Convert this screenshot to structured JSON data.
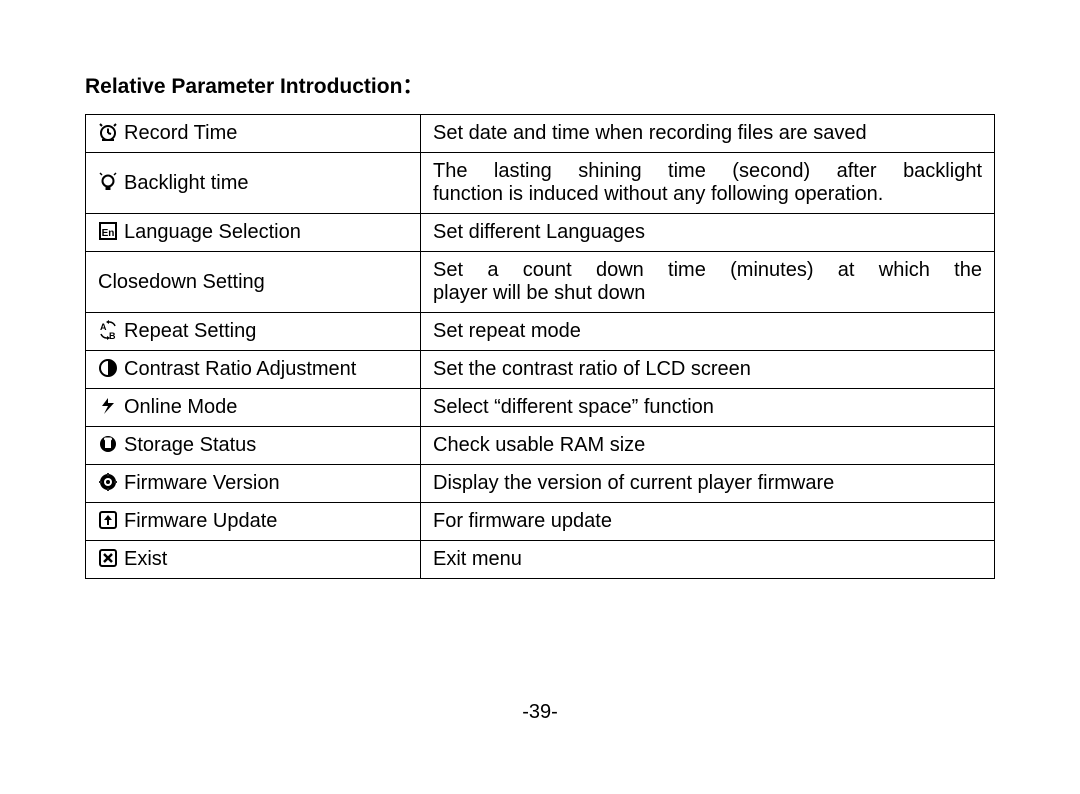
{
  "title": "Relative Parameter Introduction：",
  "page_number": "-39-",
  "table": {
    "rows": [
      {
        "icon": "clock",
        "name": "Record Time",
        "desc": "Set date and time when recording files are saved"
      },
      {
        "icon": "bulb",
        "name": "Backlight time",
        "desc_justified_part": "The lasting shining time (second) after backlight",
        "desc_last_line": "function is induced without any following operation."
      },
      {
        "icon": "lang",
        "name": "Language Selection",
        "desc": "Set different Languages"
      },
      {
        "icon": "",
        "name": "Closedown Setting",
        "desc_justified_part": "Set a count down time (minutes) at which the",
        "desc_last_line": "player will be shut down"
      },
      {
        "icon": "repeat",
        "name": "Repeat Setting",
        "desc": "Set repeat mode"
      },
      {
        "icon": "contrast",
        "name": "Contrast Ratio Adjustment",
        "desc": "Set the contrast ratio of LCD screen"
      },
      {
        "icon": "online",
        "name": "Online Mode",
        "desc": "Select “different space” function"
      },
      {
        "icon": "storage",
        "name": "Storage Status",
        "desc": "Check usable RAM size"
      },
      {
        "icon": "version",
        "name": "Firmware Version",
        "desc": "Display the version of current player firmware"
      },
      {
        "icon": "update",
        "name": "Firmware Update",
        "desc": "For firmware update"
      },
      {
        "icon": "exit",
        "name": "Exist",
        "desc": "Exit menu"
      }
    ]
  }
}
